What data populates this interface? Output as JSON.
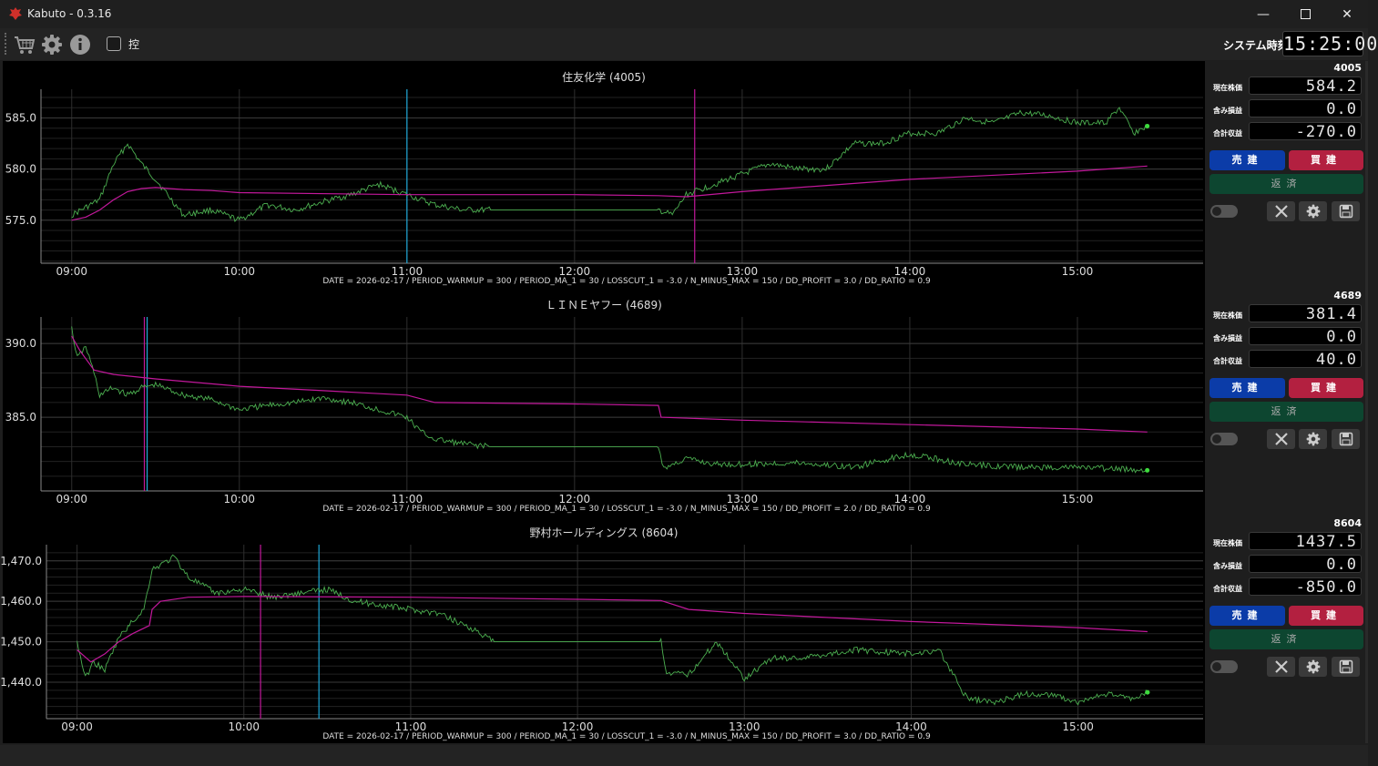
{
  "window": {
    "title": "Kabuto - 0.3.16",
    "minimize_icon": "minimize-icon",
    "maximize_icon": "maximize-icon",
    "close_icon": "close-icon"
  },
  "toolbar": {
    "icons": [
      "cart-icon",
      "gear-icon",
      "info-icon"
    ],
    "checkbox_label": "控",
    "checkbox_checked": false,
    "system_time_label": "システム時刻",
    "system_time": "15:25:00"
  },
  "colors": {
    "price_line": "#4caf50",
    "ma_line": "#c2189b",
    "marker_blue": "#1ea7d6",
    "marker_magenta": "#c2189b",
    "sell_button": "#0b3ca8",
    "buy_button": "#b32040",
    "repay_button": "#0d4630"
  },
  "panels": [
    {
      "code": "4005",
      "price_label": "現在株価",
      "price": "584.2",
      "unrealized_label": "含み損益",
      "unrealized": "0.0",
      "total_label": "合計収益",
      "total": "-270.0",
      "sell": "売建",
      "buy": "買建",
      "repay": "返済",
      "icons": [
        "toggle-icon",
        "tools-icon",
        "gear-icon",
        "save-icon"
      ]
    },
    {
      "code": "4689",
      "price_label": "現在株価",
      "price": "381.4",
      "unrealized_label": "含み損益",
      "unrealized": "0.0",
      "total_label": "合計収益",
      "total": "40.0",
      "sell": "売建",
      "buy": "買建",
      "repay": "返済",
      "icons": [
        "toggle-icon",
        "tools-icon",
        "gear-icon",
        "save-icon"
      ]
    },
    {
      "code": "8604",
      "price_label": "現在株価",
      "price": "1437.5",
      "unrealized_label": "含み損益",
      "unrealized": "0.0",
      "total_label": "合計収益",
      "total": "-850.0",
      "sell": "売建",
      "buy": "買建",
      "repay": "返済",
      "icons": [
        "toggle-icon",
        "tools-icon",
        "gear-icon",
        "save-icon"
      ]
    }
  ],
  "chart_data": [
    {
      "type": "line",
      "title": "住友化学 (4005)",
      "xlabel": "DATE = 2026-02-17 / PERIOD_WARMUP = 300 / PERIOD_MA_1 = 30 / LOSSCUT_1 = -3.0 / N_MINUS_MAX = 150 / DD_PROFIT = 3.0 / DD_RATIO = 0.9",
      "x_ticks": [
        "09:00",
        "10:00",
        "11:00",
        "12:00",
        "13:00",
        "14:00",
        "15:00"
      ],
      "y_ticks": [
        "575.0",
        "580.0",
        "585.0"
      ],
      "y_tick_values": [
        575,
        580,
        585
      ],
      "xlim": [
        "08:49",
        "15:45"
      ],
      "ylim": [
        570.8,
        587.8
      ],
      "grid": true,
      "series": [
        {
          "role": "price",
          "x": [
            "09:00",
            "09:10",
            "09:15",
            "09:20",
            "09:25",
            "09:30",
            "09:40",
            "09:50",
            "10:00",
            "10:10",
            "10:20",
            "10:30",
            "10:40",
            "10:50",
            "11:00",
            "11:10",
            "11:20",
            "11:30",
            "12:30",
            "12:35",
            "12:40",
            "12:50",
            "13:00",
            "13:10",
            "13:20",
            "13:30",
            "13:40",
            "13:50",
            "14:00",
            "14:10",
            "14:20",
            "14:30",
            "14:40",
            "14:50",
            "15:00",
            "15:10",
            "15:15",
            "15:20",
            "15:25"
          ],
          "y": [
            575.5,
            577.0,
            580.5,
            582.5,
            580.5,
            579.0,
            575.5,
            576.0,
            575.0,
            576.5,
            576.0,
            576.8,
            577.5,
            578.5,
            577.5,
            576.5,
            576.0,
            576.0,
            576.0,
            575.5,
            577.5,
            578.5,
            579.5,
            580.5,
            580.0,
            580.0,
            582.5,
            582.5,
            583.5,
            583.5,
            585.0,
            584.5,
            585.5,
            585.2,
            584.5,
            584.5,
            586.0,
            583.5,
            584.2
          ]
        },
        {
          "role": "moving_average",
          "x": [
            "09:00",
            "09:05",
            "09:10",
            "09:15",
            "09:20",
            "09:25",
            "09:30",
            "09:40",
            "09:50",
            "10:00",
            "11:00",
            "12:00",
            "12:30",
            "12:40",
            "13:00",
            "14:00",
            "15:00",
            "15:25"
          ],
          "y": [
            575.0,
            575.3,
            576.0,
            577.0,
            577.8,
            578.1,
            578.2,
            578.0,
            577.9,
            577.7,
            577.5,
            577.5,
            577.4,
            577.3,
            577.8,
            579.0,
            579.8,
            580.3
          ]
        }
      ],
      "markers": [
        {
          "time": "11:00",
          "color": "blue"
        },
        {
          "time": "12:43",
          "color": "magenta"
        }
      ],
      "last_point": {
        "time": "15:25",
        "value": 584.2
      }
    },
    {
      "type": "line",
      "title": "ＬＩＮＥヤフー (4689)",
      "xlabel": "DATE = 2026-02-17 / PERIOD_WARMUP = 300 / PERIOD_MA_1 = 30 / LOSSCUT_1 = -3.0 / N_MINUS_MAX = 150 / DD_PROFIT = 2.0 / DD_RATIO = 0.9",
      "x_ticks": [
        "09:00",
        "10:00",
        "11:00",
        "12:00",
        "13:00",
        "14:00",
        "15:00"
      ],
      "y_ticks": [
        "385.0",
        "390.0"
      ],
      "y_tick_values": [
        385,
        390
      ],
      "xlim": [
        "08:49",
        "15:45"
      ],
      "ylim": [
        380.0,
        391.8
      ],
      "grid": true,
      "series": [
        {
          "role": "price",
          "x": [
            "09:00",
            "09:02",
            "09:05",
            "09:08",
            "09:10",
            "09:15",
            "09:20",
            "09:25",
            "09:30",
            "09:40",
            "09:50",
            "10:00",
            "10:10",
            "10:20",
            "10:30",
            "10:40",
            "10:50",
            "11:00",
            "11:05",
            "11:10",
            "11:20",
            "11:30",
            "12:30",
            "12:32",
            "12:40",
            "12:50",
            "13:00",
            "13:20",
            "13:40",
            "14:00",
            "14:20",
            "14:40",
            "15:00",
            "15:25"
          ],
          "y": [
            391.0,
            389.0,
            389.8,
            388.0,
            386.5,
            387.0,
            386.5,
            387.0,
            387.2,
            386.5,
            386.2,
            385.5,
            385.8,
            386.0,
            386.3,
            386.0,
            385.5,
            385.0,
            384.0,
            383.5,
            383.2,
            383.0,
            383.0,
            381.5,
            382.2,
            381.8,
            381.8,
            381.9,
            381.6,
            382.5,
            381.8,
            381.6,
            381.6,
            381.4
          ]
        },
        {
          "role": "moving_average",
          "x": [
            "09:00",
            "09:03",
            "09:08",
            "09:15",
            "09:30",
            "10:00",
            "10:30",
            "11:00",
            "11:10",
            "12:00",
            "12:30",
            "12:31",
            "13:00",
            "14:00",
            "15:00",
            "15:25"
          ],
          "y": [
            390.5,
            389.5,
            388.2,
            387.9,
            387.6,
            387.1,
            386.8,
            386.5,
            386.0,
            385.9,
            385.8,
            385.0,
            384.8,
            384.5,
            384.2,
            384.0
          ]
        }
      ],
      "markers": [
        {
          "time": "09:26",
          "color": "magenta"
        },
        {
          "time": "09:27",
          "color": "blue"
        }
      ],
      "last_point": {
        "time": "15:25",
        "value": 381.4
      }
    },
    {
      "type": "line",
      "title": "野村ホールディングス (8604)",
      "xlabel": "DATE = 2026-02-17 / PERIOD_WARMUP = 300 / PERIOD_MA_1 = 30 / LOSSCUT_1 = -3.0 / N_MINUS_MAX = 150 / DD_PROFIT = 3.0 / DD_RATIO = 0.9",
      "x_ticks": [
        "09:00",
        "10:00",
        "11:00",
        "12:00",
        "13:00",
        "14:00",
        "15:00"
      ],
      "y_ticks": [
        "1,440.0",
        "1,450.0",
        "1,460.0",
        "1,470.0"
      ],
      "y_tick_values": [
        1440,
        1450,
        1460,
        1470
      ],
      "xlim": [
        "08:49",
        "15:45"
      ],
      "ylim": [
        1431.0,
        1474.0
      ],
      "grid": true,
      "series": [
        {
          "role": "price",
          "x": [
            "09:00",
            "09:03",
            "09:06",
            "09:10",
            "09:15",
            "09:20",
            "09:24",
            "09:27",
            "09:30",
            "09:35",
            "09:40",
            "09:50",
            "10:00",
            "10:10",
            "10:20",
            "10:30",
            "10:40",
            "10:50",
            "11:00",
            "11:10",
            "11:20",
            "11:30",
            "12:30",
            "12:32",
            "12:40",
            "12:50",
            "13:00",
            "13:10",
            "13:20",
            "13:40",
            "14:00",
            "14:10",
            "14:15",
            "14:20",
            "14:30",
            "14:40",
            "14:50",
            "15:00",
            "15:10",
            "15:20",
            "15:25"
          ],
          "y": [
            1450.0,
            1441.0,
            1445.0,
            1443.0,
            1451.0,
            1455.0,
            1458.0,
            1468.0,
            1469.0,
            1471.0,
            1466.0,
            1462.0,
            1463.0,
            1461.0,
            1462.0,
            1463.0,
            1460.0,
            1459.0,
            1458.0,
            1457.0,
            1454.0,
            1450.0,
            1450.0,
            1442.0,
            1442.0,
            1450.0,
            1441.0,
            1446.0,
            1446.0,
            1448.0,
            1447.0,
            1448.0,
            1442.0,
            1436.0,
            1435.0,
            1437.0,
            1437.0,
            1435.0,
            1437.0,
            1436.0,
            1437.5
          ]
        },
        {
          "role": "moving_average",
          "x": [
            "09:00",
            "09:05",
            "09:10",
            "09:15",
            "09:20",
            "09:26",
            "09:27",
            "09:30",
            "09:40",
            "10:00",
            "11:00",
            "12:00",
            "12:30",
            "12:40",
            "13:00",
            "14:00",
            "15:00",
            "15:25"
          ],
          "y": [
            1448.0,
            1445.0,
            1447.0,
            1450.0,
            1452.0,
            1454.0,
            1458.0,
            1460.0,
            1461.0,
            1461.2,
            1461.0,
            1460.5,
            1460.2,
            1458.0,
            1457.0,
            1455.0,
            1453.5,
            1452.5
          ]
        }
      ],
      "markers": [
        {
          "time": "10:06",
          "color": "magenta"
        },
        {
          "time": "10:27",
          "color": "blue"
        }
      ],
      "last_point": {
        "time": "15:25",
        "value": 1437.5
      }
    }
  ]
}
